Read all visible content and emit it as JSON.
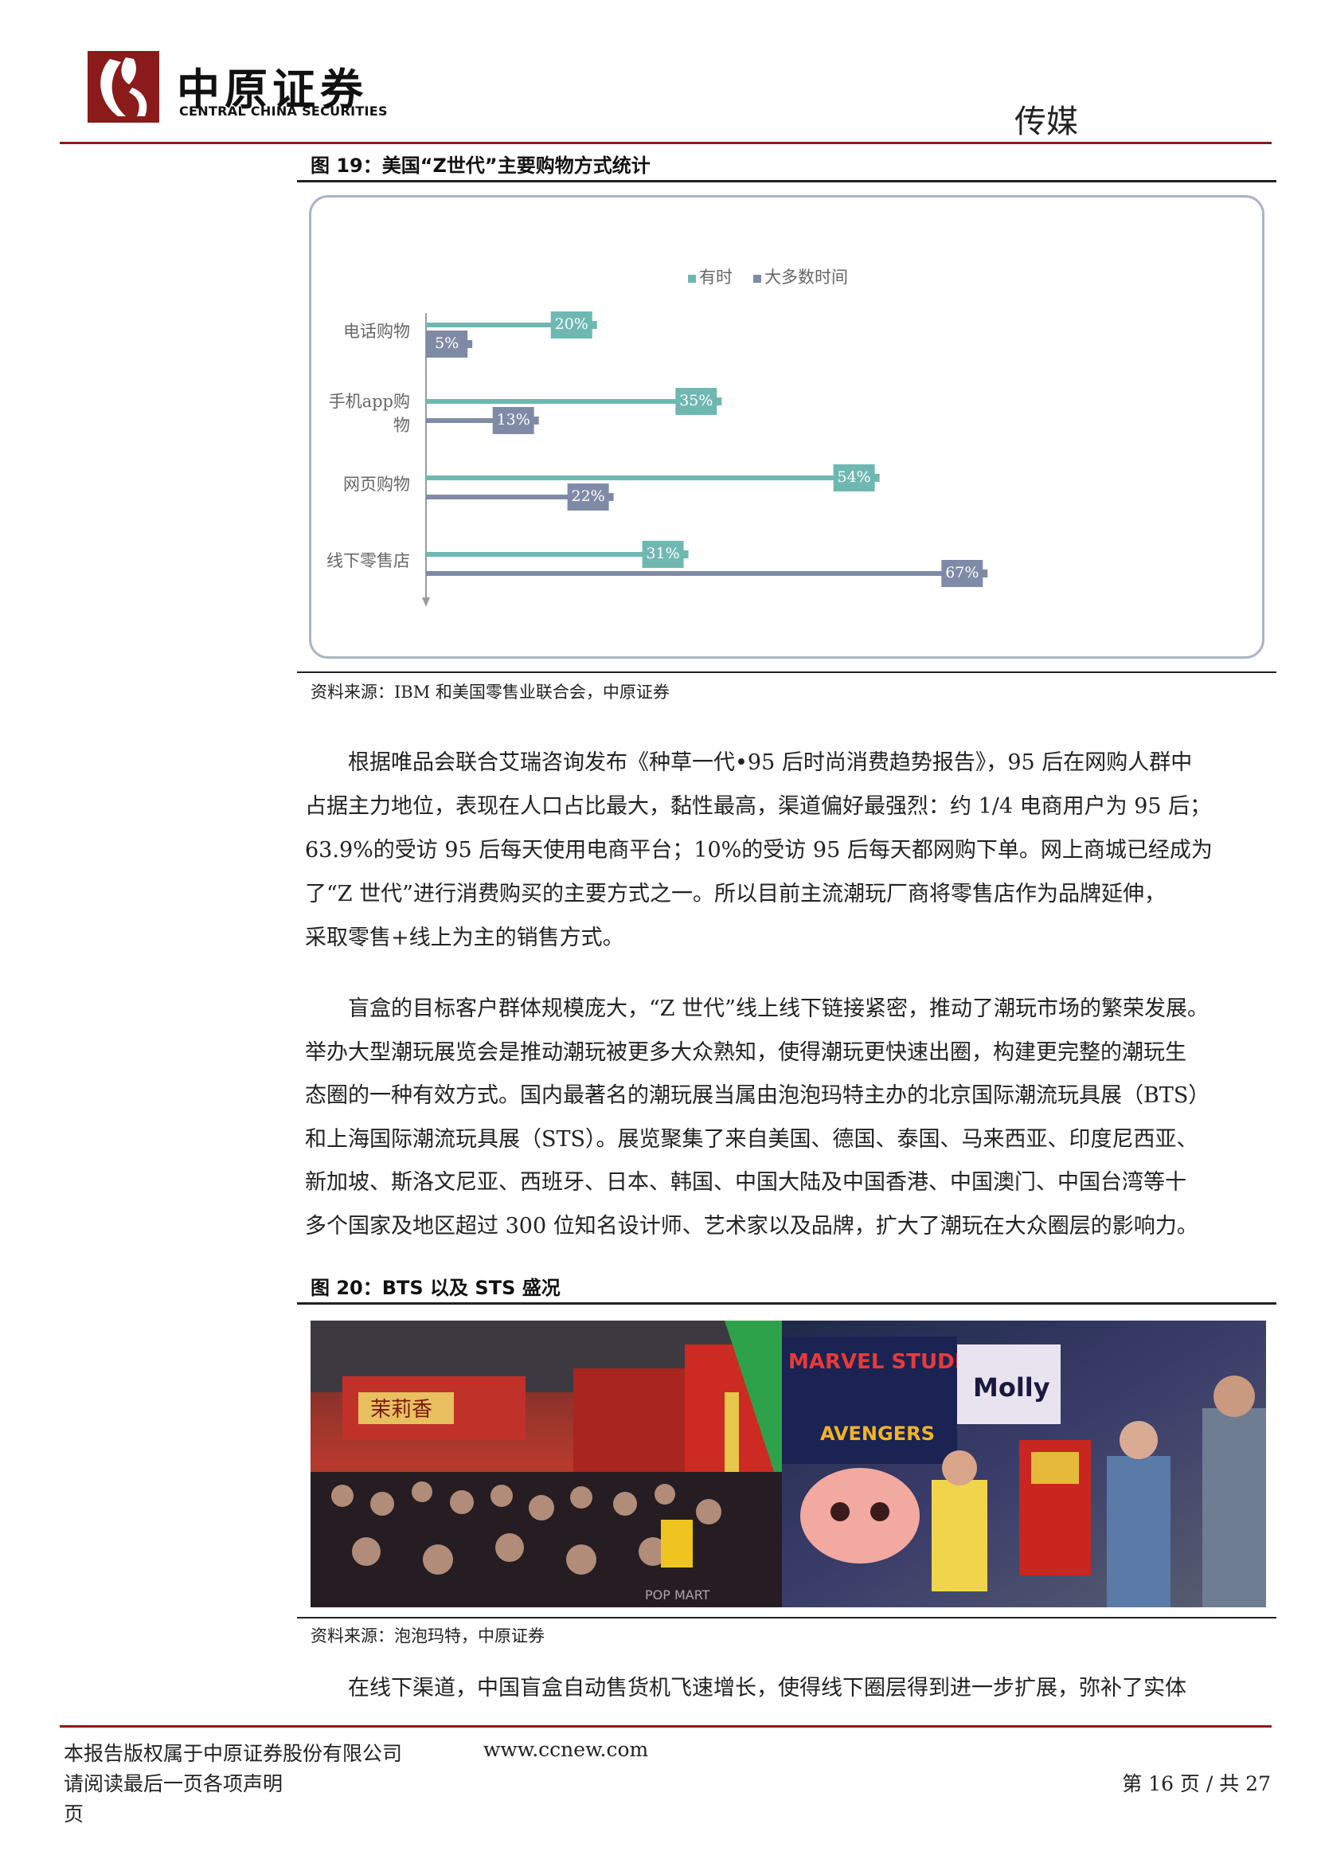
{
  "header": {
    "brand_cn": "中原证券",
    "brand_en": "CENTRAL CHINA SECURITIES",
    "section": "传媒"
  },
  "figure19": {
    "title": "图 19：美国“Z世代”主要购物方式统计",
    "source": "资料来源：IBM 和美国零售业联合会，中原证券",
    "legend": [
      "有时",
      "大多数时间"
    ]
  },
  "chart_data": {
    "type": "bar",
    "orientation": "horizontal",
    "categories": [
      "电话购物",
      "手机app购物",
      "网页购物",
      "线下零售店"
    ],
    "category_lines": [
      [
        "电话购物"
      ],
      [
        "手机app购",
        "物"
      ],
      [
        "网页购物"
      ],
      [
        "线下零售店"
      ]
    ],
    "series": [
      {
        "name": "有时",
        "values": [
          20,
          35,
          54,
          31
        ],
        "labels": [
          "20%",
          "35%",
          "54%",
          "31%"
        ],
        "color": "#6fb8b2"
      },
      {
        "name": "大多数时间",
        "values": [
          5,
          13,
          22,
          67
        ],
        "labels": [
          "5%",
          "13%",
          "22%",
          "67%"
        ],
        "color": "#7f8aa6"
      }
    ],
    "xlim": [
      0,
      80
    ],
    "legend_position": "top",
    "grid": false
  },
  "paragraphs": [
    {
      "lines": [
        "根据唯品会联合艾瑞咨询发布《种草一代•95 后时尚消费趋势报告》，95 后在网购人群中",
        "占据主力地位，表现在人口占比最大，黏性最高，渠道偏好最强烈：约 1/4 电商用户为 95 后；",
        "63.9%的受访 95 后每天使用电商平台；10%的受访 95 后每天都网购下单。网上商城已经成为",
        "了“Z 世代”进行消费购买的主要方式之一。所以目前主流潮玩厂商将零售店作为品牌延伸，",
        "采取零售+线上为主的销售方式。"
      ]
    },
    {
      "lines": [
        "盲盒的目标客户群体规模庞大，“Z 世代”线上线下链接紧密，推动了潮玩市场的繁荣发展。",
        "举办大型潮玩展览会是推动潮玩被更多大众熟知，使得潮玩更快速出圈，构建更完整的潮玩生",
        "态圈的一种有效方式。国内最著名的潮玩展当属由泡泡玛特主办的北京国际潮流玩具展（BTS）",
        "和上海国际潮流玩具展（STS）。展览聚集了来自美国、德国、泰国、马来西亚、印度尼西亚、",
        "新加坡、斯洛文尼亚、西班牙、日本、韩国、中国大陆及中国香港、中国澳门、中国台湾等十",
        "多个国家及地区超过 300 位知名设计师、艺术家以及品牌，扩大了潮玩在大众圈层的影响力。"
      ]
    },
    {
      "lines": [
        "在线下渠道，中国盲盒自动售货机飞速增长，使得线下圈层得到进一步扩展，弥补了实体"
      ]
    }
  ],
  "figure20": {
    "title": "图 20：BTS 以及 STS 盛况",
    "source": "资料来源：泡泡玛特，中原证券",
    "photo_texts": [
      "茉莉香",
      "MARVEL STUDIOS",
      "AVENGERS",
      "Molly",
      "POP MART"
    ]
  },
  "footer": {
    "copyright": "本报告版权属于中原证券股份有限公司",
    "website": "www.ccnew.com",
    "notice": "请阅读最后一页各项声明",
    "page_label": "第 16 页 / 共 27",
    "page_suffix": "页"
  }
}
